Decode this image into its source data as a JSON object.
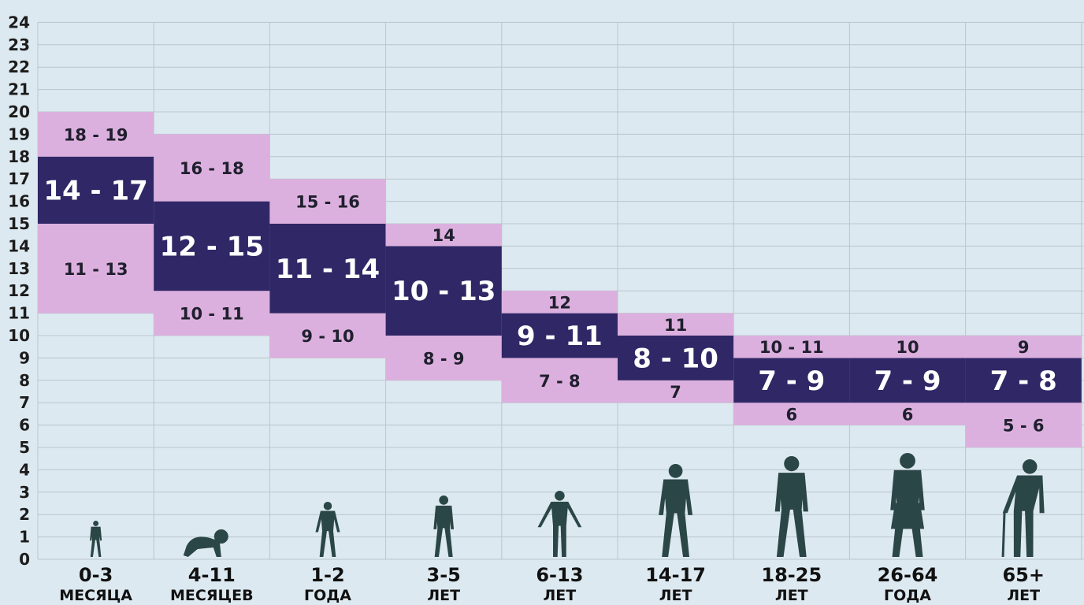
{
  "chart_data": {
    "type": "bar",
    "ylim": [
      0,
      24
    ],
    "yticks": [
      "0",
      "1",
      "2",
      "3",
      "4",
      "5",
      "6",
      "7",
      "8",
      "9",
      "10",
      "11",
      "12",
      "13",
      "14",
      "15",
      "16",
      "17",
      "18",
      "19",
      "20",
      "21",
      "22",
      "23",
      "24"
    ],
    "grid": true,
    "categories": [
      {
        "line1": "0-3",
        "line2": "МЕСЯЦА",
        "figure": "newborn-figure-icon"
      },
      {
        "line1": "4-11",
        "line2": "МЕСЯЦЕВ",
        "figure": "crawling-baby-figure-icon"
      },
      {
        "line1": "1-2",
        "line2": "ГОДА",
        "figure": "toddler-figure-icon"
      },
      {
        "line1": "3-5",
        "line2": "ЛЕТ",
        "figure": "preschooler-figure-icon"
      },
      {
        "line1": "6-13",
        "line2": "ЛЕТ",
        "figure": "child-figure-icon"
      },
      {
        "line1": "14-17",
        "line2": "ЛЕТ",
        "figure": "teen-figure-icon"
      },
      {
        "line1": "18-25",
        "line2": "ЛЕТ",
        "figure": "young-adult-figure-icon"
      },
      {
        "line1": "26-64",
        "line2": "ГОДА",
        "figure": "adult-figure-icon"
      },
      {
        "line1": "65+",
        "line2": "ЛЕТ",
        "figure": "elderly-figure-icon"
      }
    ],
    "series": [
      {
        "role": "lower_acceptable",
        "color": "#dcb0de",
        "ranges": [
          [
            11,
            15
          ],
          [
            10,
            12
          ],
          [
            9,
            11
          ],
          [
            8,
            10
          ],
          [
            7,
            9
          ],
          [
            7,
            8
          ],
          [
            6,
            7
          ],
          [
            6,
            7
          ],
          [
            5,
            7
          ]
        ],
        "labels": [
          "11 - 13",
          "10 - 11",
          "9 - 10",
          "8 - 9",
          "7 - 8",
          "7",
          "6",
          "6",
          "5 - 6"
        ]
      },
      {
        "role": "recommended",
        "color": "#302766",
        "ranges": [
          [
            15,
            18
          ],
          [
            12,
            16
          ],
          [
            11,
            15
          ],
          [
            10,
            14
          ],
          [
            9,
            11
          ],
          [
            8,
            10
          ],
          [
            7,
            9
          ],
          [
            7,
            9
          ],
          [
            7,
            9
          ]
        ],
        "labels": [
          "14 - 17",
          "12 - 15",
          "11 - 14",
          "10 - 13",
          "9 - 11",
          "8 - 10",
          "7 - 9",
          "7 - 9",
          "7 - 8"
        ]
      },
      {
        "role": "upper_acceptable",
        "color": "#dcb0de",
        "ranges": [
          [
            18,
            20
          ],
          [
            16,
            19
          ],
          [
            15,
            17
          ],
          [
            14,
            15
          ],
          [
            11,
            12
          ],
          [
            10,
            11
          ],
          [
            9,
            10
          ],
          [
            9,
            10
          ],
          [
            9,
            10
          ]
        ],
        "labels": [
          "18 - 19",
          "16 - 18",
          "15 - 16",
          "14",
          "12",
          "11",
          "10 - 11",
          "10",
          "9"
        ]
      }
    ]
  }
}
